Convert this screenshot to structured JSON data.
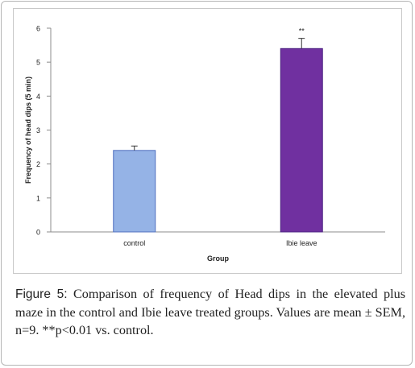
{
  "chart_data": {
    "type": "bar",
    "categories": [
      "control",
      "Ibie leave"
    ],
    "values": [
      2.4,
      5.4
    ],
    "errors": [
      0.13,
      0.3
    ],
    "annotations": [
      "",
      "**"
    ],
    "colors": [
      "#95b3e6",
      "#7030a0"
    ],
    "edge_colors": [
      "#4f6fbf",
      "#4a2080"
    ],
    "xlabel": "Group",
    "ylabel": "Frequency of head dips (5 min)",
    "ylim": [
      0,
      6
    ],
    "yticks": [
      "0",
      "1",
      "2",
      "3",
      "4",
      "5",
      "6"
    ],
    "grid": false,
    "legend": "none"
  },
  "caption": {
    "lead": "Figure 5:",
    "text": " Comparison of frequency of Head dips in the elevated plus maze in the control and Ibie leave treated groups. Values are mean ± SEM, n=9. **p<0.01 vs. control."
  }
}
